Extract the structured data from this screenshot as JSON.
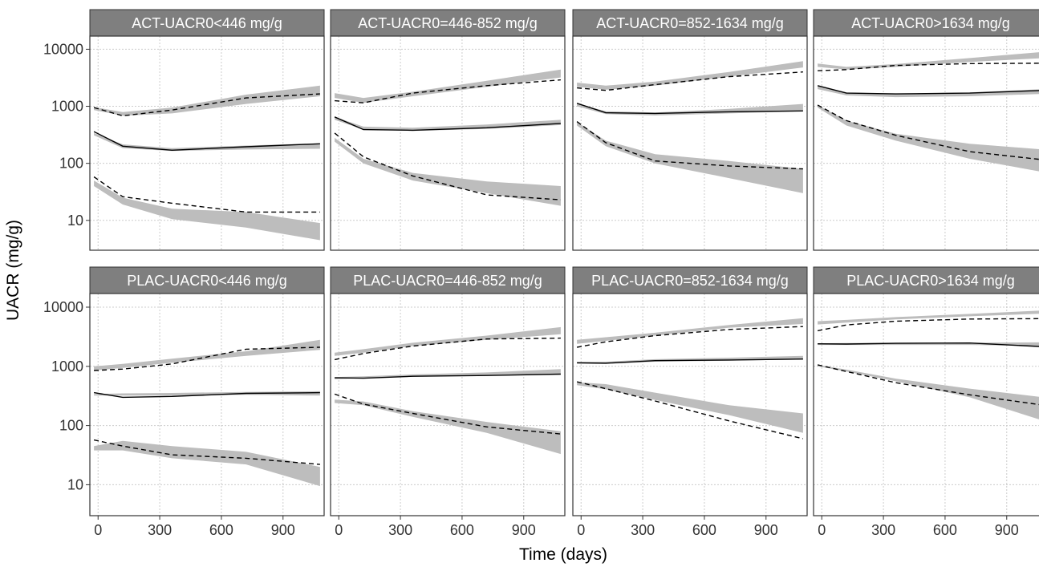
{
  "chart_data": {
    "type": "line",
    "xlabel": "Time (days)",
    "ylabel": "UACR (mg/g)",
    "x_ticks": [
      0,
      300,
      600,
      900
    ],
    "y_ticks": [
      10,
      100,
      1000,
      10000
    ],
    "y_tick_labels": [
      "10",
      "100",
      "1000",
      "10000"
    ],
    "y_scale": "log10",
    "xlim": [
      -40,
      1100
    ],
    "ylim": [
      3,
      17000
    ],
    "grid": true,
    "colors": {
      "strip": "#7f7f7f",
      "band": "#bdbdbd",
      "line": "#000000",
      "grid": "#cccccc",
      "border": "#333333"
    },
    "legend": "none",
    "line_styles": {
      "median": "solid",
      "p10": "dashed",
      "p90": "dashed"
    },
    "panels": [
      {
        "title": "ACT-UACR0<446 mg/g",
        "observed": {
          "x": [
            -20,
            120,
            360,
            720,
            1080
          ],
          "median": [
            360,
            200,
            170,
            195,
            220
          ],
          "p10": [
            58,
            26,
            20,
            14,
            14
          ],
          "p90": [
            950,
            680,
            860,
            1400,
            1650
          ]
        },
        "prediction_bands": [
          {
            "x": [
              -20,
              120,
              360,
              720,
              1080
            ],
            "lower": [
              860,
              680,
              750,
              1100,
              1500
            ],
            "upper": [
              970,
              790,
              950,
              1600,
              2300
            ]
          },
          {
            "x": [
              -20,
              120,
              360,
              720,
              1080
            ],
            "lower": [
              310,
              185,
              165,
              175,
              180
            ],
            "upper": [
              340,
              215,
              185,
              205,
              225
            ]
          },
          {
            "x": [
              -20,
              120,
              360,
              720,
              1080
            ],
            "lower": [
              40,
              19,
              10.5,
              7.5,
              4.5
            ],
            "upper": [
              50,
              25,
              16,
              14,
              9
            ]
          }
        ]
      },
      {
        "title": "ACT-UACR0=446-852 mg/g",
        "observed": {
          "x": [
            -20,
            120,
            360,
            720,
            1080
          ],
          "median": [
            650,
            390,
            380,
            420,
            500
          ],
          "p10": [
            340,
            130,
            60,
            28,
            23
          ],
          "p90": [
            1250,
            1150,
            1700,
            2300,
            2900
          ]
        },
        "prediction_bands": [
          {
            "x": [
              -20,
              120,
              360,
              720,
              1080
            ],
            "lower": [
              1400,
              1150,
              1500,
              2200,
              3200
            ],
            "upper": [
              1700,
              1400,
              1800,
              2800,
              4400
            ]
          },
          {
            "x": [
              -20,
              120,
              360,
              720,
              1080
            ],
            "lower": [
              580,
              390,
              370,
              400,
              470
            ],
            "upper": [
              650,
              440,
              420,
              480,
              580
            ]
          },
          {
            "x": [
              -20,
              120,
              360,
              720,
              1080
            ],
            "lower": [
              240,
              100,
              50,
              30,
              18
            ],
            "upper": [
              280,
              120,
              68,
              48,
              40
            ]
          }
        ]
      },
      {
        "title": "ACT-UACR0=852-1634 mg/g",
        "observed": {
          "x": [
            -20,
            120,
            360,
            720,
            1080
          ],
          "median": [
            1130,
            770,
            750,
            800,
            830
          ],
          "p10": [
            540,
            230,
            110,
            90,
            80
          ],
          "p90": [
            2100,
            1900,
            2400,
            3300,
            4000
          ]
        },
        "prediction_bands": [
          {
            "x": [
              -20,
              120,
              360,
              720,
              1080
            ],
            "lower": [
              2200,
              1950,
              2300,
              3300,
              4800
            ],
            "upper": [
              2600,
              2300,
              2700,
              4000,
              6200
            ]
          },
          {
            "x": [
              -20,
              120,
              360,
              720,
              1080
            ],
            "lower": [
              1000,
              730,
              690,
              750,
              820
            ],
            "upper": [
              1120,
              820,
              780,
              900,
              1100
            ]
          },
          {
            "x": [
              -20,
              120,
              360,
              720,
              1080
            ],
            "lower": [
              460,
              200,
              100,
              55,
              30
            ],
            "upper": [
              530,
              250,
              145,
              110,
              80
            ]
          }
        ]
      },
      {
        "title": "ACT-UACR0>1634 mg/g",
        "observed": {
          "x": [
            -20,
            120,
            360,
            720,
            1080
          ],
          "median": [
            2300,
            1700,
            1650,
            1700,
            1900
          ],
          "p10": [
            1050,
            560,
            310,
            160,
            115
          ],
          "p90": [
            4200,
            4400,
            5200,
            5600,
            5700
          ]
        },
        "prediction_bands": [
          {
            "x": [
              -20,
              120,
              360,
              720,
              1080
            ],
            "lower": [
              4900,
              4400,
              4900,
              6000,
              7000
            ],
            "upper": [
              5600,
              4900,
              5500,
              7000,
              9000
            ]
          },
          {
            "x": [
              -20,
              120,
              360,
              720,
              1080
            ],
            "lower": [
              2000,
              1550,
              1450,
              1500,
              1650
            ],
            "upper": [
              2300,
              1750,
              1650,
              1750,
              2000
            ]
          },
          {
            "x": [
              -20,
              120,
              360,
              720,
              1080
            ],
            "lower": [
              950,
              460,
              250,
              120,
              70
            ],
            "upper": [
              1050,
              560,
              330,
              220,
              175
            ]
          }
        ]
      },
      {
        "title": "PLAC-UACR0<446 mg/g",
        "observed": {
          "x": [
            -20,
            120,
            360,
            720,
            1080
          ],
          "median": [
            360,
            300,
            310,
            350,
            360
          ],
          "p10": [
            57,
            45,
            32,
            28,
            22
          ],
          "p90": [
            850,
            900,
            1100,
            1950,
            2100
          ]
        },
        "prediction_bands": [
          {
            "x": [
              -20,
              120,
              360,
              720,
              1080
            ],
            "lower": [
              850,
              940,
              1150,
              1500,
              1900
            ],
            "upper": [
              1000,
              1100,
              1350,
              1800,
              2800
            ]
          },
          {
            "x": [
              -20,
              120,
              360,
              720,
              1080
            ],
            "lower": [
              320,
              320,
              320,
              330,
              320
            ],
            "upper": [
              340,
              350,
              355,
              370,
              380
            ]
          },
          {
            "x": [
              -20,
              120,
              360,
              720,
              1080
            ],
            "lower": [
              38,
              38,
              28,
              22,
              9.5
            ],
            "upper": [
              45,
              55,
              45,
              36,
              20
            ]
          }
        ]
      },
      {
        "title": "PLAC-UACR0=446-852 mg/g",
        "observed": {
          "x": [
            -20,
            120,
            360,
            720,
            1080
          ],
          "median": [
            640,
            630,
            680,
            700,
            740
          ],
          "p10": [
            340,
            230,
            160,
            95,
            72
          ],
          "p90": [
            1300,
            1650,
            2200,
            2900,
            3000
          ]
        },
        "prediction_bands": [
          {
            "x": [
              -20,
              120,
              360,
              720,
              1080
            ],
            "lower": [
              1500,
              1700,
              2200,
              2800,
              3500
            ],
            "upper": [
              1700,
              1950,
              2500,
              3300,
              4600
            ]
          },
          {
            "x": [
              -20,
              120,
              360,
              720,
              1080
            ],
            "lower": [
              610,
              630,
              670,
              700,
              730
            ],
            "upper": [
              660,
              680,
              730,
              790,
              900
            ]
          },
          {
            "x": [
              -20,
              120,
              360,
              720,
              1080
            ],
            "lower": [
              240,
              220,
              140,
              75,
              33
            ],
            "upper": [
              275,
              255,
              175,
              115,
              80
            ]
          }
        ]
      },
      {
        "title": "PLAC-UACR0=852-1634 mg/g",
        "observed": {
          "x": [
            -20,
            120,
            360,
            720,
            1080
          ],
          "median": [
            1150,
            1130,
            1250,
            1280,
            1330
          ],
          "p10": [
            550,
            420,
            260,
            120,
            60
          ],
          "p90": [
            2100,
            2600,
            3300,
            4200,
            4700
          ]
        },
        "prediction_bands": [
          {
            "x": [
              -20,
              120,
              360,
              720,
              1080
            ],
            "lower": [
              2400,
              2700,
              3300,
              4500,
              5200
            ],
            "upper": [
              2800,
              3100,
              3700,
              5000,
              6500
            ]
          },
          {
            "x": [
              -20,
              120,
              360,
              720,
              1080
            ],
            "lower": [
              1100,
              1100,
              1200,
              1250,
              1300
            ],
            "upper": [
              1180,
              1200,
              1320,
              1400,
              1500
            ]
          },
          {
            "x": [
              -20,
              120,
              360,
              720,
              1080
            ],
            "lower": [
              480,
              410,
              270,
              150,
              75
            ],
            "upper": [
              540,
              500,
              360,
              220,
              160
            ]
          }
        ]
      },
      {
        "title": "PLAC-UACR0>1634 mg/g",
        "observed": {
          "x": [
            -20,
            120,
            360,
            720,
            1080
          ],
          "median": [
            2400,
            2380,
            2450,
            2480,
            2150
          ],
          "p10": [
            1060,
            820,
            530,
            330,
            220
          ],
          "p90": [
            4000,
            5000,
            5800,
            6300,
            6400
          ]
        },
        "prediction_bands": [
          {
            "x": [
              -20,
              120,
              360,
              720,
              1080
            ],
            "lower": [
              5100,
              5500,
              6200,
              7000,
              7800
            ],
            "upper": [
              5800,
              6100,
              6800,
              7700,
              8800
            ]
          },
          {
            "x": [
              -20,
              120,
              360,
              720,
              1080
            ],
            "lower": [
              2300,
              2300,
              2300,
              2300,
              2200
            ],
            "upper": [
              2450,
              2480,
              2500,
              2500,
              2550
            ]
          },
          {
            "x": [
              -20,
              120,
              360,
              720,
              1080
            ],
            "lower": [
              1000,
              820,
              560,
              300,
              120
            ],
            "upper": [
              1060,
              880,
              620,
              420,
              300
            ]
          }
        ]
      }
    ]
  }
}
